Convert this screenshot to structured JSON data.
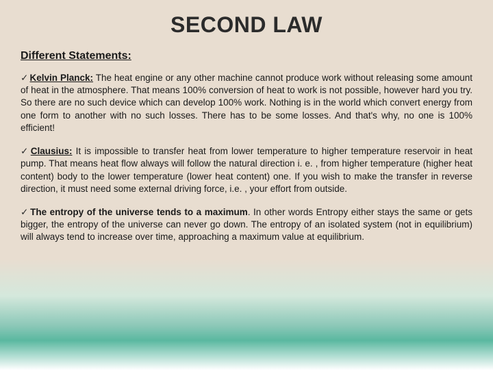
{
  "title": "SECOND LAW",
  "subtitle": "Different Statements:",
  "statements": [
    {
      "label": "Kelvin Planck:",
      "labelUnderlined": true,
      "body": " The heat engine or any other machine cannot produce work without releasing some amount of heat in the atmosphere. That means 100% conversion of heat to work is not possible, however hard you try. So there are no such device which can develop 100% work. Nothing is in the world which convert energy from one form to another with no such losses. There has to be some losses. And that's why, no one is 100% efficient!"
    },
    {
      "label": "Clausius:",
      "labelUnderlined": true,
      "body": " It is impossible to transfer heat from lower temperature to higher temperature reservoir in heat pump. That means heat flow always will follow the natural direction i. e. , from higher temperature (higher heat content) body to the lower temperature (lower heat content) one. If you wish to make the transfer in reverse direction, it must need some external driving force, i.e. , your effort from outside."
    },
    {
      "label": "The entropy of the universe tends to a maximum",
      "labelUnderlined": false,
      "body": ". In other words Entropy either stays the same or gets bigger, the entropy of the universe can never go down. The entropy of an isolated system (not in equilibrium) will always tend to increase over time, approaching a maximum value at equilibrium."
    }
  ],
  "colors": {
    "background_top": "#e8ddd0",
    "background_mid": "#8cc8b8",
    "background_bottom": "#ffffff",
    "text": "#1a1a1a",
    "title": "#2b2b2b"
  }
}
